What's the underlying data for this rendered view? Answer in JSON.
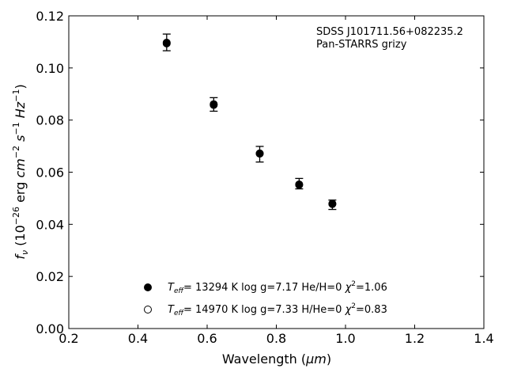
{
  "chart_data": {
    "type": "scatter",
    "xlabel": {
      "main": "Wavelength (",
      "unit": "μm",
      "close": ")"
    },
    "ylabel": {
      "f": "f",
      "nu": "ν",
      "pre": " (10",
      "e1": "−26",
      "mid": " erg ",
      "cm": "cm",
      "e2": "−2",
      "s": " s",
      "e3": "−1",
      "hz": " Hz",
      "e4": "−1",
      "close": ")"
    },
    "xlim": [
      0.2,
      1.4
    ],
    "ylim": [
      0.0,
      0.12
    ],
    "xticks": [
      "0.2",
      "0.4",
      "0.6",
      "0.8",
      "1.0",
      "1.2",
      "1.4"
    ],
    "yticks": [
      "0.00",
      "0.02",
      "0.04",
      "0.06",
      "0.08",
      "0.10",
      "0.12"
    ],
    "annotation": [
      "SDSS J101711.56+082235.2",
      "Pan-STARRS grizy"
    ],
    "observed": {
      "x": [
        0.483,
        0.619,
        0.752,
        0.866,
        0.962
      ],
      "y": [
        0.1098,
        0.086,
        0.0669,
        0.0556,
        0.0475
      ],
      "err": [
        0.0032,
        0.0026,
        0.003,
        0.002,
        0.0018
      ]
    },
    "series": [
      {
        "legend": {
          "T": "T",
          "eff": "eff",
          "rest": "= 13294 K  log g=7.17  He/H=0  ",
          "chi": "χ",
          "sq": "2",
          "val": "=1.06"
        },
        "marker": "filled",
        "x": [
          0.483,
          0.619,
          0.752,
          0.866,
          0.962
        ],
        "y": [
          0.1094,
          0.0858,
          0.0671,
          0.0551,
          0.0478
        ]
      },
      {
        "legend": {
          "T": "T",
          "eff": "eff",
          "rest": "= 14970 K  log g=7.33  H/He=0  ",
          "chi": "χ",
          "sq": "2",
          "val": "=0.83"
        },
        "marker": "open",
        "x": [
          0.483,
          0.619,
          0.752,
          0.866,
          0.962
        ],
        "y": [
          0.1097,
          0.0861,
          0.0672,
          0.0553,
          0.0479
        ]
      }
    ],
    "grid": false,
    "legend_position": "lower-center"
  }
}
